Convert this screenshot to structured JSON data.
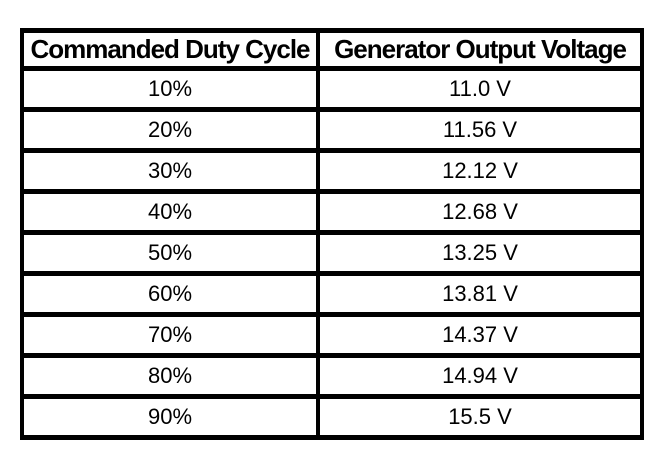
{
  "page": {
    "background_color": "#ffffff",
    "border_color": "#000000",
    "text_color": "#000000"
  },
  "table": {
    "columns": [
      "Commanded Duty Cycle",
      "Generator Output Voltage"
    ],
    "rows": [
      [
        "10%",
        "11.0 V"
      ],
      [
        "20%",
        "11.56 V"
      ],
      [
        "30%",
        "12.12 V"
      ],
      [
        "40%",
        "12.68 V"
      ],
      [
        "50%",
        "13.25 V"
      ],
      [
        "60%",
        "13.81 V"
      ],
      [
        "70%",
        "14.37 V"
      ],
      [
        "80%",
        "14.94 V"
      ],
      [
        "90%",
        "15.5 V"
      ]
    ]
  },
  "chart_data": {
    "type": "table",
    "columns": [
      "Commanded Duty Cycle",
      "Generator Output Voltage"
    ],
    "duty_cycle_percent": [
      10,
      20,
      30,
      40,
      50,
      60,
      70,
      80,
      90
    ],
    "generator_output_voltage_v": [
      11.0,
      11.56,
      12.12,
      12.68,
      13.25,
      13.81,
      14.37,
      14.94,
      15.5
    ]
  }
}
